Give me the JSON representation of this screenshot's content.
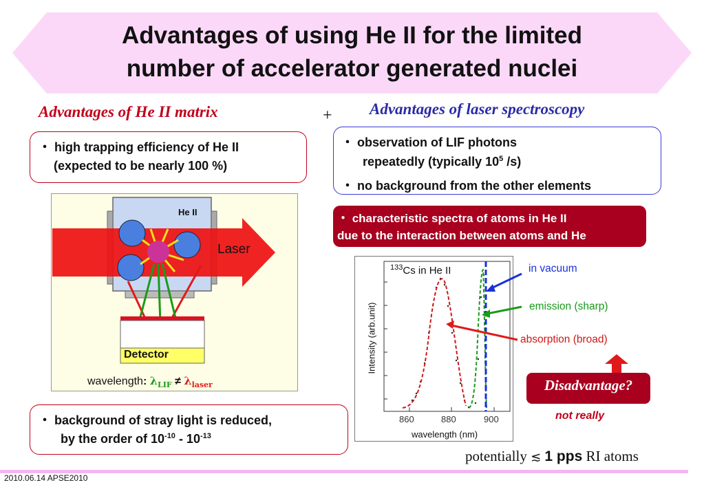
{
  "title": {
    "line1": "Advantages of using He II for the limited",
    "line2": "number of accelerator generated nuclei"
  },
  "left_heading": "Advantages of He II matrix",
  "plus_sign": "+",
  "right_heading": "Advantages of laser spectroscopy",
  "left_box_top": {
    "line1": "・ high trapping efficiency of He II",
    "line2": "(expected to be nearly 100 %)"
  },
  "right_box": {
    "line1": "・ observation of LIF photons",
    "line2_pre": "repeatedly (typically 10",
    "line2_sup": "5",
    "line2_post": " /s)",
    "line3": "・ no background from the other elements"
  },
  "dark_box": {
    "line1": "・ characteristic spectra of atoms in He II",
    "line2": "due to the interaction between atoms and He"
  },
  "diagram": {
    "he_label": "He II",
    "laser_label": "Laser",
    "detector_label": "Detector",
    "wavelength_label": "wavelength",
    "colon": ":",
    "lambda": "λ",
    "lif_sub": "LIF",
    "neq": "≠",
    "laser_sub": "laser"
  },
  "spectrum": {
    "iso_sup": "133",
    "iso_text": "Cs in He II",
    "ylabel": "Intensity (arb.unit)",
    "xlabel": "wavelength (nm)",
    "ticks": [
      "860",
      "880",
      "900"
    ]
  },
  "annotations": {
    "vacuum": "in vacuum",
    "emission": "emission (sharp)",
    "absorption": "absorption (broad)"
  },
  "disadvantage": "Disadvantage?",
  "not_really": "not really",
  "left_box_bottom": {
    "line1": "・ background of stray light is reduced,",
    "line2_pre": "by the order of 10",
    "sup1": "-10",
    "mid": " - 10",
    "sup2": "-13"
  },
  "potential": {
    "pre": "potentially",
    "sym": "≲",
    "value": "1 pps",
    "post": "RI atoms"
  },
  "footer": "2010.06.14 APSE2010",
  "colors": {
    "banner": "#fbd8f8",
    "red": "#c0001a",
    "blue": "#2a2aa8",
    "green": "#1a9a1a",
    "laser_red": "#ee1111"
  }
}
